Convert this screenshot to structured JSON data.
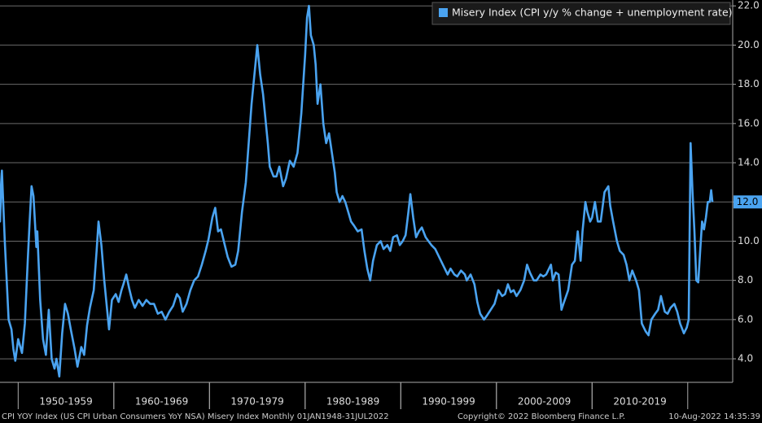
{
  "chart_data": {
    "type": "line",
    "series": [
      {
        "name": "Misery Index (CPI y/y % change + unemployment rate)",
        "color": "#4aa3f0",
        "axis": "y2",
        "values": [
          13.5,
          11,
          13.6,
          10,
          6,
          5.5,
          4.5,
          3.9,
          5,
          4.3,
          5.8,
          9,
          11,
          12.8,
          12.3,
          9.7,
          10.5,
          7,
          5,
          4.2,
          6.5,
          4.0,
          3.5,
          4.0,
          3.1,
          5.3,
          6.8,
          6.3,
          5.5,
          4.5,
          3.6,
          4.6,
          4.2,
          5.7,
          6.6,
          7.5,
          9.5,
          11.0,
          9.8,
          8,
          6.5,
          5.5,
          7.0,
          7.3,
          6.9,
          7.5,
          7.8,
          8.3,
          7.6,
          7.0,
          6.6,
          7.0,
          6.7,
          7.0,
          6.8,
          6.8,
          6.3,
          6.4,
          6.0,
          6.4,
          6.7,
          7.3,
          7.1,
          6.4,
          6.8,
          7.5,
          8.0,
          8.2,
          8.8,
          9.5,
          10.1,
          11.2,
          11.7,
          10.5,
          10.6,
          9.8,
          9.2,
          8.7,
          8.8,
          9.5,
          11.5,
          13.0,
          15.0,
          17.0,
          18.5,
          20.0,
          18.5,
          17.5,
          16.0,
          15.0,
          13.8,
          13.3,
          13.3,
          13.8,
          12.8,
          13.2,
          14.1,
          13.8,
          14.5,
          16.5,
          19.5,
          21.4,
          22.0,
          20.5,
          20.0,
          19.0,
          17.0,
          18.0,
          16.0,
          15.0,
          15.5,
          14.5,
          13.5,
          12.5,
          12.0,
          12.3,
          12.0,
          11.5,
          11.0,
          10.8,
          10.5,
          10.6,
          9.5,
          8.6,
          8.0,
          9.0,
          9.8,
          10.0,
          9.6,
          9.8,
          9.5,
          10.2,
          10.3,
          9.8,
          10.0,
          10.3,
          11.5,
          12.4,
          11.2,
          10.2,
          10.5,
          10.7,
          10.2,
          10.0,
          9.8,
          9.6,
          9.3,
          9.0,
          8.6,
          8.3,
          8.6,
          8.3,
          8.2,
          8.5,
          8.3,
          8.0,
          8.3,
          7.8,
          6.9,
          6.3,
          6.0,
          6.2,
          6.5,
          6.8,
          7.5,
          7.2,
          7.3,
          7.8,
          7.4,
          7.5,
          7.2,
          7.5,
          8.0,
          8.8,
          8.4,
          8.0,
          8.0,
          8.3,
          8.2,
          8.3,
          8.8,
          8.0,
          8.4,
          8.3,
          6.5,
          6.8,
          7.5,
          8.8,
          9.0,
          10.5,
          9.0,
          10.5,
          12.0,
          11.5,
          11.0,
          11.2,
          12.0,
          11.0,
          11.0,
          12.5,
          12.8,
          11.8,
          11.0,
          10.0,
          9.5,
          9.3,
          8.8,
          8.0,
          8.5,
          8.0,
          7.5,
          5.8,
          5.4,
          5.2,
          6.0,
          6.3,
          6.5,
          7.2,
          6.4,
          6.3,
          6.6,
          6.8,
          6.4,
          5.8,
          5.3,
          5.6,
          6.0,
          15.0,
          12.5,
          10.5,
          8.0,
          7.9,
          9.5,
          11.0,
          10.6,
          11.2,
          12.0,
          12.0,
          12.6,
          12.0
        ]
      }
    ],
    "x": [
      1948.0,
      1948.1,
      1948.3,
      1948.6,
      1949.0,
      1949.3,
      1949.5,
      1949.7,
      1950.0,
      1950.4,
      1950.7,
      1951.0,
      1951.2,
      1951.4,
      1951.6,
      1951.9,
      1952.0,
      1952.3,
      1952.6,
      1952.9,
      1953.2,
      1953.5,
      1953.8,
      1954.0,
      1954.3,
      1954.6,
      1954.9,
      1955.2,
      1955.5,
      1955.9,
      1956.2,
      1956.6,
      1956.9,
      1957.2,
      1957.5,
      1957.9,
      1958.2,
      1958.4,
      1958.7,
      1959.0,
      1959.3,
      1959.5,
      1959.8,
      1960.2,
      1960.5,
      1960.8,
      1961.0,
      1961.3,
      1961.6,
      1961.9,
      1962.2,
      1962.6,
      1963.0,
      1963.4,
      1963.8,
      1964.2,
      1964.6,
      1965.0,
      1965.4,
      1965.8,
      1966.2,
      1966.6,
      1966.9,
      1967.2,
      1967.6,
      1968.0,
      1968.4,
      1968.8,
      1969.2,
      1969.6,
      1969.9,
      1970.3,
      1970.6,
      1970.9,
      1971.2,
      1971.6,
      1971.9,
      1972.3,
      1972.7,
      1973.0,
      1973.4,
      1973.8,
      1974.1,
      1974.4,
      1974.7,
      1975.0,
      1975.3,
      1975.6,
      1975.9,
      1976.1,
      1976.3,
      1976.7,
      1977.0,
      1977.3,
      1977.7,
      1978.0,
      1978.4,
      1978.8,
      1979.2,
      1979.6,
      1980.0,
      1980.2,
      1980.4,
      1980.6,
      1980.9,
      1981.1,
      1981.3,
      1981.6,
      1981.9,
      1982.2,
      1982.5,
      1982.8,
      1983.1,
      1983.3,
      1983.6,
      1983.9,
      1984.2,
      1984.5,
      1984.8,
      1985.1,
      1985.5,
      1985.9,
      1986.2,
      1986.5,
      1986.8,
      1987.1,
      1987.5,
      1987.9,
      1988.2,
      1988.6,
      1988.9,
      1989.2,
      1989.6,
      1989.9,
      1990.2,
      1990.5,
      1990.8,
      1991.0,
      1991.3,
      1991.6,
      1991.9,
      1992.2,
      1992.6,
      1992.9,
      1993.2,
      1993.6,
      1993.9,
      1994.2,
      1994.6,
      1994.9,
      1995.2,
      1995.6,
      1995.9,
      1996.3,
      1996.7,
      1996.9,
      1997.3,
      1997.7,
      1998.0,
      1998.3,
      1998.7,
      1999.0,
      1999.4,
      1999.8,
      2000.2,
      2000.6,
      2000.9,
      2001.2,
      2001.5,
      2001.8,
      2002.1,
      2002.5,
      2002.9,
      2003.2,
      2003.5,
      2003.9,
      2004.2,
      2004.6,
      2004.9,
      2005.2,
      2005.7,
      2005.9,
      2006.2,
      2006.5,
      2006.8,
      2007.0,
      2007.5,
      2007.9,
      2008.2,
      2008.5,
      2008.8,
      2009.0,
      2009.3,
      2009.5,
      2009.8,
      2010.0,
      2010.3,
      2010.6,
      2010.9,
      2011.3,
      2011.7,
      2011.9,
      2012.2,
      2012.6,
      2012.9,
      2013.3,
      2013.6,
      2013.9,
      2014.2,
      2014.6,
      2014.9,
      2015.2,
      2015.6,
      2015.9,
      2016.2,
      2016.6,
      2016.9,
      2017.2,
      2017.6,
      2017.9,
      2018.2,
      2018.6,
      2018.9,
      2019.2,
      2019.6,
      2019.9,
      2020.1,
      2020.3,
      2020.5,
      2020.7,
      2020.9,
      2021.1,
      2021.3,
      2021.5,
      2021.7,
      2021.9,
      2022.1,
      2022.3,
      2022.45,
      2022.58
    ],
    "xlim": [
      1948.1,
      2024.7
    ],
    "xticks": [
      {
        "value": 1955,
        "label": "1950-1959"
      },
      {
        "value": 1965,
        "label": "1960-1969"
      },
      {
        "value": 1975,
        "label": "1970-1979"
      },
      {
        "value": 1985,
        "label": "1980-1989"
      },
      {
        "value": 1995,
        "label": "1990-1999"
      },
      {
        "value": 2005,
        "label": "2000-2009"
      },
      {
        "value": 2015,
        "label": "2010-2019"
      }
    ],
    "y2lim": [
      2.8,
      22.3
    ],
    "y2ticks": [
      {
        "value": 4,
        "label": "4.0"
      },
      {
        "value": 6,
        "label": "6.0"
      },
      {
        "value": 8,
        "label": "8.0"
      },
      {
        "value": 10,
        "label": "10.0"
      },
      {
        "value": 12,
        "label": "12.0"
      },
      {
        "value": 14,
        "label": "14.0"
      },
      {
        "value": 16,
        "label": "16.0"
      },
      {
        "value": 18,
        "label": "18.0"
      },
      {
        "value": 20,
        "label": "20.0"
      },
      {
        "value": 22,
        "label": "22.0"
      }
    ],
    "last_value": {
      "value": 12,
      "label": "12.0"
    },
    "grid": true,
    "legend": "top-right",
    "footer": {
      "left": "CPI YOY Index (US CPI Urban Consumers YoY NSA) Misery Index  Monthly 01JAN1948-31JUL2022",
      "center": "Copyright© 2022 Bloomberg Finance L.P.",
      "right": "10-Aug-2022 14:35:39"
    }
  }
}
